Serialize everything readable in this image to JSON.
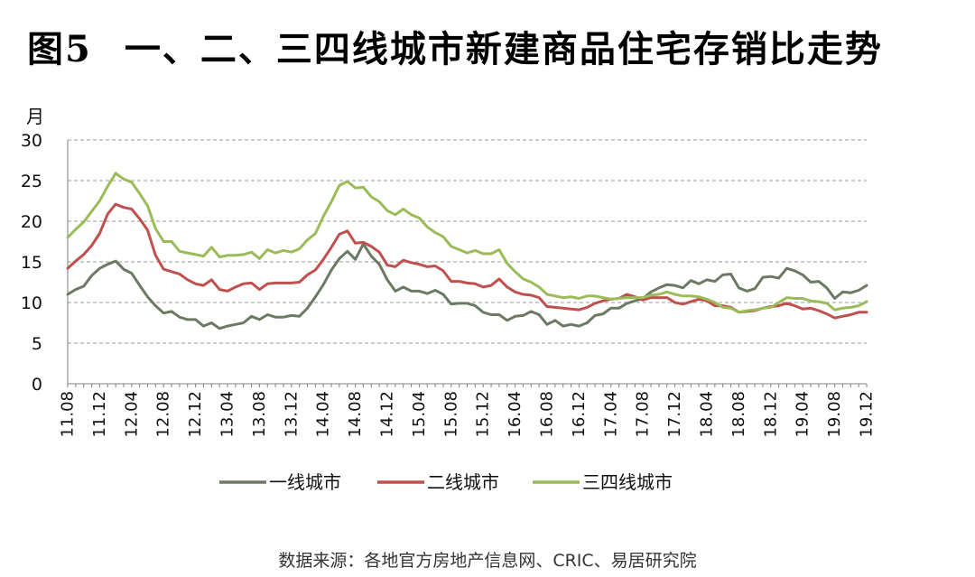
{
  "figure": {
    "label": "图5",
    "title": "一、二、三四线城市新建商品住宅存销比走势",
    "source": "数据来源：各地官方房地产信息网、CRIC、易居研究院"
  },
  "chart_data": {
    "type": "line",
    "title": "一、二、三四线城市新建商品住宅存销比走势",
    "ylabel": "月",
    "ylim": [
      0,
      30
    ],
    "yticks": [
      0,
      5,
      10,
      15,
      20,
      25,
      30
    ],
    "grid": "horizontal-dashed",
    "legend": "bottom-center",
    "xtick_labels": [
      "11.08",
      "11.12",
      "12.04",
      "12.08",
      "12.12",
      "13.04",
      "13.08",
      "13.12",
      "14.04",
      "14.08",
      "14.12",
      "15.04",
      "15.08",
      "15.12",
      "16.04",
      "16.08",
      "16.12",
      "17.04",
      "17.08",
      "17.12",
      "18.04",
      "18.08",
      "18.12",
      "19.04",
      "19.08",
      "19.12"
    ],
    "x": [
      "11.08",
      "11.09",
      "11.10",
      "11.11",
      "11.12",
      "12.01",
      "12.02",
      "12.03",
      "12.04",
      "12.05",
      "12.06",
      "12.07",
      "12.08",
      "12.09",
      "12.10",
      "12.11",
      "12.12",
      "13.01",
      "13.02",
      "13.03",
      "13.04",
      "13.05",
      "13.06",
      "13.07",
      "13.08",
      "13.09",
      "13.10",
      "13.11",
      "13.12",
      "14.01",
      "14.02",
      "14.03",
      "14.04",
      "14.05",
      "14.06",
      "14.07",
      "14.08",
      "14.09",
      "14.10",
      "14.11",
      "14.12",
      "15.01",
      "15.02",
      "15.03",
      "15.04",
      "15.05",
      "15.06",
      "15.07",
      "15.08",
      "15.09",
      "15.10",
      "15.11",
      "15.12",
      "16.01",
      "16.02",
      "16.03",
      "16.04",
      "16.05",
      "16.06",
      "16.07",
      "16.08",
      "16.09",
      "16.10",
      "16.11",
      "16.12",
      "17.01",
      "17.02",
      "17.03",
      "17.04",
      "17.05",
      "17.06",
      "17.07",
      "17.08",
      "17.09",
      "17.10",
      "17.11",
      "17.12",
      "18.01",
      "18.02",
      "18.03",
      "18.04",
      "18.05",
      "18.06",
      "18.07",
      "18.08",
      "18.09",
      "18.10",
      "18.11",
      "18.12",
      "19.01",
      "19.02",
      "19.03",
      "19.04",
      "19.05",
      "19.06",
      "19.07",
      "19.08",
      "19.09",
      "19.10",
      "19.11",
      "19.12"
    ],
    "series": [
      {
        "name": "一线城市",
        "color": "#6b7a63",
        "values": [
          11.0,
          11.6,
          12.0,
          13.3,
          14.2,
          14.7,
          15.1,
          14.1,
          13.6,
          12.1,
          10.7,
          9.6,
          8.7,
          8.9,
          8.2,
          7.9,
          7.9,
          7.1,
          7.5,
          6.8,
          7.1,
          7.3,
          7.5,
          8.3,
          7.9,
          8.5,
          8.2,
          8.2,
          8.4,
          8.3,
          9.3,
          10.7,
          12.2,
          14.0,
          15.4,
          16.3,
          15.3,
          17.2,
          15.7,
          14.7,
          12.8,
          11.4,
          11.9,
          11.4,
          11.4,
          11.1,
          11.5,
          11.0,
          9.8,
          9.9,
          9.9,
          9.6,
          8.8,
          8.5,
          8.5,
          7.8,
          8.3,
          8.4,
          8.9,
          8.5,
          7.3,
          7.8,
          7.1,
          7.3,
          7.1,
          7.5,
          8.4,
          8.6,
          9.3,
          9.3,
          9.9,
          10.2,
          10.5,
          11.3,
          11.8,
          12.2,
          12.1,
          11.8,
          12.7,
          12.3,
          12.8,
          12.6,
          13.4,
          13.5,
          11.8,
          11.4,
          11.7,
          13.1,
          13.2,
          13.0,
          14.2,
          13.9,
          13.4,
          12.5,
          12.6,
          11.8,
          10.5,
          11.3,
          11.2,
          11.5,
          12.1
        ]
      },
      {
        "name": "二线城市",
        "color": "#c0504d",
        "values": [
          14.2,
          15.1,
          15.9,
          17.0,
          18.5,
          20.9,
          22.1,
          21.7,
          21.5,
          20.3,
          18.9,
          15.8,
          14.1,
          13.8,
          13.5,
          12.8,
          12.3,
          12.1,
          12.8,
          11.6,
          11.4,
          11.9,
          12.3,
          12.4,
          11.6,
          12.3,
          12.4,
          12.4,
          12.4,
          12.5,
          13.4,
          14.0,
          15.3,
          16.8,
          18.4,
          18.8,
          17.3,
          17.4,
          16.9,
          16.2,
          14.6,
          14.4,
          15.2,
          14.9,
          14.7,
          14.4,
          14.5,
          13.9,
          12.6,
          12.6,
          12.4,
          12.3,
          11.9,
          12.1,
          12.9,
          11.9,
          11.3,
          11.0,
          10.9,
          10.6,
          9.5,
          9.4,
          9.3,
          9.2,
          9.1,
          9.4,
          9.9,
          10.2,
          10.4,
          10.5,
          11.0,
          10.7,
          10.3,
          10.6,
          10.6,
          10.6,
          10.0,
          9.8,
          10.1,
          10.4,
          10.2,
          9.6,
          9.6,
          9.4,
          8.8,
          8.9,
          9.0,
          9.3,
          9.5,
          9.6,
          9.9,
          9.6,
          9.2,
          9.3,
          9.0,
          8.6,
          8.1,
          8.3,
          8.5,
          8.8,
          8.8
        ]
      },
      {
        "name": "三四线城市",
        "color": "#9bbb59",
        "values": [
          18.0,
          19.0,
          19.9,
          21.2,
          22.5,
          24.3,
          25.9,
          25.2,
          24.8,
          23.4,
          21.9,
          19.1,
          17.5,
          17.5,
          16.3,
          16.1,
          15.9,
          15.7,
          16.8,
          15.6,
          15.8,
          15.8,
          15.9,
          16.2,
          15.4,
          16.5,
          16.1,
          16.4,
          16.2,
          16.6,
          17.7,
          18.5,
          20.6,
          22.4,
          24.4,
          24.9,
          24.1,
          24.2,
          23.0,
          22.4,
          21.3,
          20.8,
          21.5,
          20.8,
          20.4,
          19.3,
          18.6,
          18.1,
          16.9,
          16.5,
          16.1,
          16.4,
          16.0,
          16.0,
          16.5,
          14.8,
          13.8,
          12.9,
          12.5,
          11.9,
          11.0,
          10.8,
          10.6,
          10.7,
          10.5,
          10.8,
          10.8,
          10.6,
          10.4,
          10.5,
          10.6,
          10.6,
          10.6,
          10.9,
          11.0,
          11.3,
          11.0,
          10.8,
          10.8,
          10.7,
          10.4,
          10.0,
          9.4,
          9.3,
          8.8,
          9.0,
          9.1,
          9.3,
          9.4,
          10.0,
          10.6,
          10.5,
          10.5,
          10.2,
          10.1,
          9.9,
          9.1,
          9.3,
          9.4,
          9.6,
          10.1
        ]
      }
    ]
  }
}
